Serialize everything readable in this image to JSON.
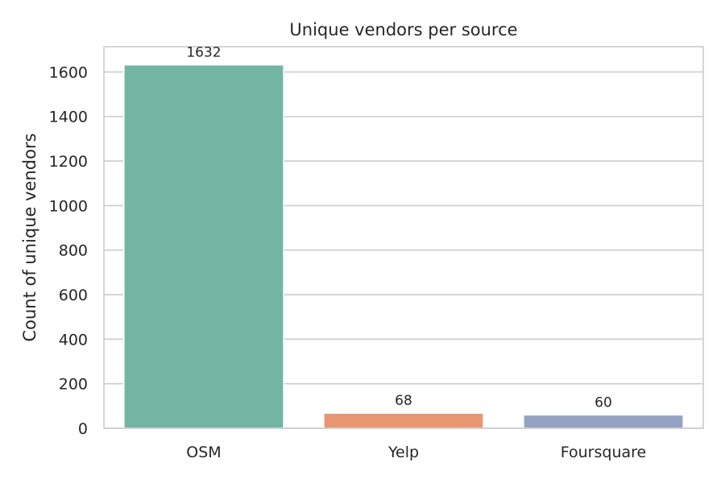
{
  "chart_data": {
    "type": "bar",
    "title": "Unique vendors per source",
    "xlabel": "",
    "ylabel": "Count of unique vendors",
    "categories": [
      "OSM",
      "Yelp",
      "Foursquare"
    ],
    "values": [
      1632,
      68,
      60
    ],
    "data_labels": [
      "1632",
      "68",
      "60"
    ],
    "bar_colors": [
      "#72b6a1",
      "#e99675",
      "#95a3c3"
    ],
    "ylim": [
      0,
      1713.6
    ],
    "yticks": [
      0,
      200,
      400,
      600,
      800,
      1000,
      1200,
      1400,
      1600
    ],
    "ytick_labels": [
      "0",
      "200",
      "400",
      "600",
      "800",
      "1000",
      "1200",
      "1400",
      "1600"
    ],
    "grid": true,
    "legend": "none"
  }
}
